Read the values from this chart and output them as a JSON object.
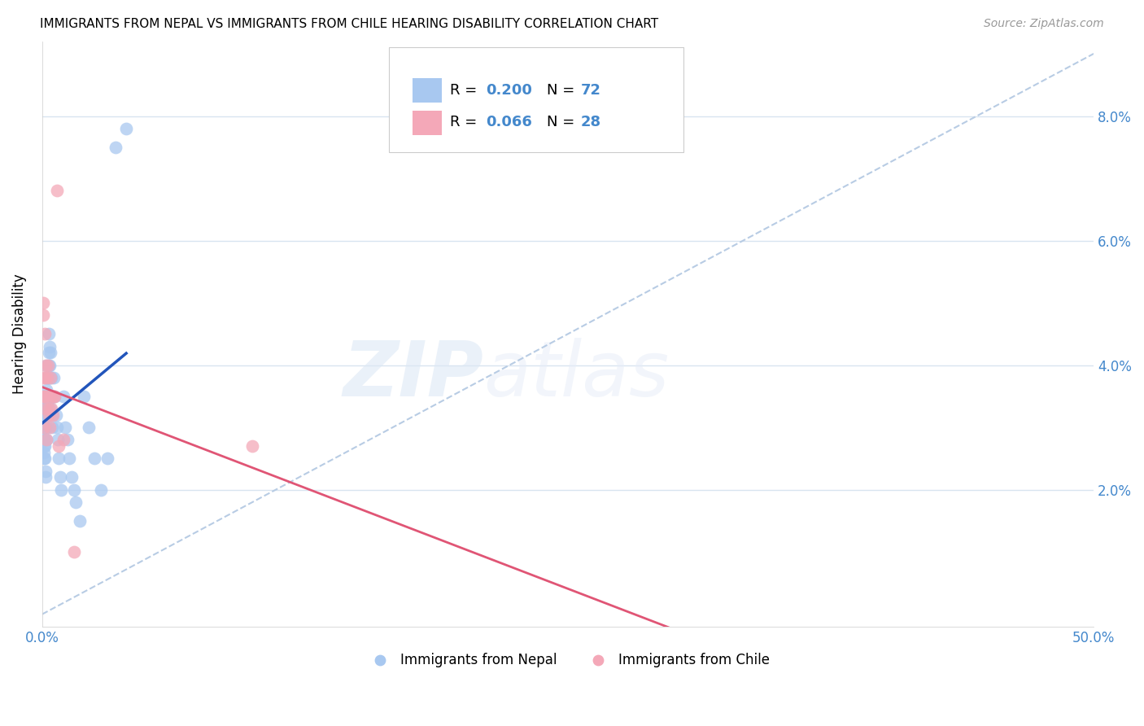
{
  "title": "IMMIGRANTS FROM NEPAL VS IMMIGRANTS FROM CHILE HEARING DISABILITY CORRELATION CHART",
  "source": "Source: ZipAtlas.com",
  "ylabel": "Hearing Disability",
  "legend_label1": "Immigrants from Nepal",
  "legend_label2": "Immigrants from Chile",
  "R1": 0.2,
  "N1": 72,
  "R2": 0.066,
  "N2": 28,
  "color1": "#a8c8f0",
  "color2": "#f4a8b8",
  "line_color1": "#2255bb",
  "line_color2": "#e05575",
  "diag_color": "#b8cce4",
  "xlim": [
    0.0,
    0.5
  ],
  "ylim": [
    -0.002,
    0.092
  ],
  "xtick_vals": [
    0.0,
    0.5
  ],
  "xtick_labels": [
    "0.0%",
    "50.0%"
  ],
  "ytick_vals": [
    0.02,
    0.04,
    0.06,
    0.08
  ],
  "ytick_labels": [
    "2.0%",
    "4.0%",
    "6.0%",
    "8.0%"
  ],
  "nepal_x": [
    0.0003,
    0.0004,
    0.0005,
    0.0005,
    0.0005,
    0.0006,
    0.0006,
    0.0007,
    0.0008,
    0.0008,
    0.0009,
    0.001,
    0.001,
    0.001,
    0.0011,
    0.0012,
    0.0013,
    0.0014,
    0.0015,
    0.0016,
    0.0017,
    0.0018,
    0.0018,
    0.0019,
    0.002,
    0.0021,
    0.0022,
    0.0023,
    0.0024,
    0.0025,
    0.0026,
    0.0027,
    0.0028,
    0.0029,
    0.003,
    0.0031,
    0.0032,
    0.0033,
    0.0034,
    0.0035,
    0.0036,
    0.0037,
    0.0038,
    0.004,
    0.0042,
    0.0044,
    0.0046,
    0.0048,
    0.005,
    0.0055,
    0.006,
    0.0065,
    0.007,
    0.0075,
    0.008,
    0.0085,
    0.009,
    0.01,
    0.011,
    0.012,
    0.013,
    0.014,
    0.015,
    0.016,
    0.018,
    0.02,
    0.022,
    0.025,
    0.028,
    0.031,
    0.035,
    0.04
  ],
  "nepal_y": [
    0.035,
    0.034,
    0.033,
    0.032,
    0.031,
    0.03,
    0.028,
    0.027,
    0.026,
    0.025,
    0.035,
    0.034,
    0.033,
    0.032,
    0.03,
    0.028,
    0.027,
    0.025,
    0.023,
    0.022,
    0.033,
    0.032,
    0.03,
    0.028,
    0.04,
    0.038,
    0.036,
    0.034,
    0.032,
    0.03,
    0.035,
    0.033,
    0.038,
    0.035,
    0.042,
    0.04,
    0.038,
    0.045,
    0.043,
    0.04,
    0.038,
    0.035,
    0.033,
    0.042,
    0.038,
    0.035,
    0.032,
    0.03,
    0.035,
    0.038,
    0.035,
    0.032,
    0.03,
    0.028,
    0.025,
    0.022,
    0.02,
    0.035,
    0.03,
    0.028,
    0.025,
    0.022,
    0.02,
    0.018,
    0.015,
    0.035,
    0.03,
    0.025,
    0.02,
    0.025,
    0.075,
    0.078
  ],
  "chile_x": [
    0.0004,
    0.0005,
    0.0006,
    0.0008,
    0.0009,
    0.001,
    0.0012,
    0.0014,
    0.0016,
    0.0018,
    0.002,
    0.0022,
    0.0025,
    0.0028,
    0.003,
    0.0032,
    0.0035,
    0.0038,
    0.004,
    0.0045,
    0.005,
    0.0055,
    0.006,
    0.007,
    0.008,
    0.01,
    0.015,
    0.1
  ],
  "chile_y": [
    0.05,
    0.048,
    0.038,
    0.035,
    0.03,
    0.035,
    0.045,
    0.038,
    0.033,
    0.04,
    0.028,
    0.035,
    0.038,
    0.04,
    0.033,
    0.032,
    0.03,
    0.038,
    0.035,
    0.033,
    0.032,
    0.035,
    0.035,
    0.068,
    0.027,
    0.028,
    0.01,
    0.027
  ],
  "watermark_zip": "ZIP",
  "watermark_atlas": "atlas",
  "background_color": "#ffffff",
  "grid_color": "#d8e4f0",
  "tick_color": "#4488cc"
}
